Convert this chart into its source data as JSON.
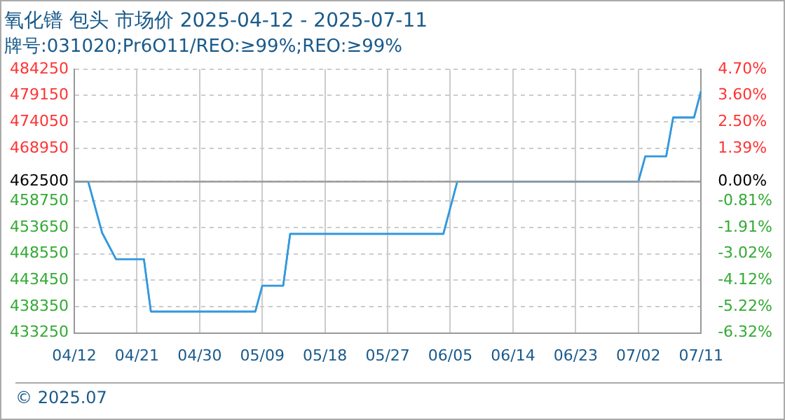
{
  "chart_data": {
    "type": "step",
    "title": "氧化镨 包头 市场价 2025-04-12 - 2025-07-11",
    "subtitle": "牌号:031020;Pr6O11/REO:≥99%;REO:≥99%",
    "annotations": [
      "© 2025.07"
    ],
    "x": [
      "2025-04-12",
      "2025-04-14",
      "2025-04-16",
      "2025-04-18",
      "2025-04-22",
      "2025-04-23",
      "2025-05-08",
      "2025-05-09",
      "2025-05-12",
      "2025-05-13",
      "2025-06-04",
      "2025-06-06",
      "2025-07-02",
      "2025-07-03",
      "2025-07-06",
      "2025-07-07",
      "2025-07-10",
      "2025-07-11"
    ],
    "series": [
      {
        "color": "#3399dd",
        "values": [
          462500,
          462500,
          452600,
          447500,
          447500,
          437400,
          437400,
          442400,
          442400,
          452400,
          452400,
          462500,
          462500,
          467400,
          467400,
          474900,
          474900,
          480000
        ]
      },
      {
        "axis": "y2",
        "color": "#3399dd",
        "values": [
          0,
          0,
          -2.14,
          -3.24,
          -3.24,
          -5.43,
          -5.43,
          -4.35,
          -4.35,
          -2.18,
          -2.18,
          0,
          0,
          1.06,
          1.06,
          2.68,
          2.68,
          3.78
        ]
      }
    ],
    "xlim": [
      "2025-04-12",
      "2025-07-11"
    ],
    "xticks": [
      {
        "value": "2025-04-12",
        "label": "04/12"
      },
      {
        "value": "2025-04-21",
        "label": "04/21"
      },
      {
        "value": "2025-04-30",
        "label": "04/30"
      },
      {
        "value": "2025-05-09",
        "label": "05/09"
      },
      {
        "value": "2025-05-18",
        "label": "05/18"
      },
      {
        "value": "2025-05-27",
        "label": "05/27"
      },
      {
        "value": "2025-06-05",
        "label": "06/05"
      },
      {
        "value": "2025-06-14",
        "label": "06/14"
      },
      {
        "value": "2025-06-23",
        "label": "06/23"
      },
      {
        "value": "2025-07-02",
        "label": "07/02"
      },
      {
        "value": "2025-07-11",
        "label": "07/11"
      }
    ],
    "ylim": [
      433250,
      484250
    ],
    "yticks": [
      433250,
      438350,
      443450,
      448550,
      453650,
      458750,
      462500,
      468950,
      474050,
      479150,
      484250
    ],
    "y2lim": [
      -6.32,
      4.7
    ],
    "y2ticks": [
      {
        "value": -6.32,
        "label": "-6.32%"
      },
      {
        "value": -5.22,
        "label": "-5.22%"
      },
      {
        "value": -4.12,
        "label": "-4.12%"
      },
      {
        "value": -3.02,
        "label": "-3.02%"
      },
      {
        "value": -1.91,
        "label": "-1.91%"
      },
      {
        "value": -0.81,
        "label": "-0.81%"
      },
      {
        "value": 0,
        "label": "0.00%"
      },
      {
        "value": 1.39,
        "label": "1.39%"
      },
      {
        "value": 2.5,
        "label": "2.50%"
      },
      {
        "value": 3.6,
        "label": "3.60%"
      },
      {
        "value": 4.7,
        "label": "4.70%"
      }
    ],
    "ref_lines": [
      {
        "axis": "y",
        "value": 462500,
        "color": "#999999"
      }
    ],
    "grid": true,
    "legend": false,
    "marker": "none",
    "line_style": "solid"
  }
}
